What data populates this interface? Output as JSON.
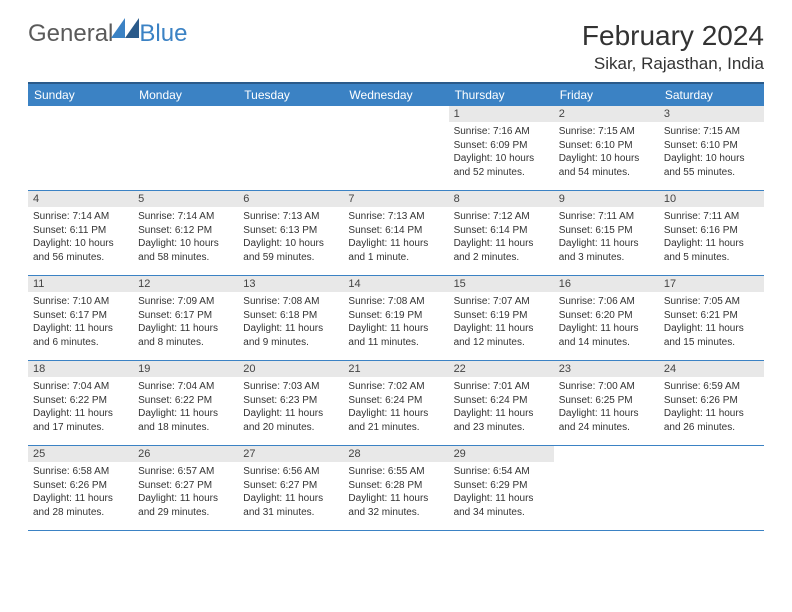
{
  "logo": {
    "text1": "General",
    "text2": "Blue"
  },
  "title": "February 2024",
  "location": "Sikar, Rajasthan, India",
  "colors": {
    "header_bg": "#3b82c4",
    "header_border": "#2a5a8a",
    "week_border": "#3b82c4",
    "daynum_bg": "#e8e8e8",
    "text": "#333333"
  },
  "day_headers": [
    "Sunday",
    "Monday",
    "Tuesday",
    "Wednesday",
    "Thursday",
    "Friday",
    "Saturday"
  ],
  "weeks": [
    [
      {
        "n": "",
        "sr": "",
        "ss": "",
        "dl": ""
      },
      {
        "n": "",
        "sr": "",
        "ss": "",
        "dl": ""
      },
      {
        "n": "",
        "sr": "",
        "ss": "",
        "dl": ""
      },
      {
        "n": "",
        "sr": "",
        "ss": "",
        "dl": ""
      },
      {
        "n": "1",
        "sr": "Sunrise: 7:16 AM",
        "ss": "Sunset: 6:09 PM",
        "dl": "Daylight: 10 hours and 52 minutes."
      },
      {
        "n": "2",
        "sr": "Sunrise: 7:15 AM",
        "ss": "Sunset: 6:10 PM",
        "dl": "Daylight: 10 hours and 54 minutes."
      },
      {
        "n": "3",
        "sr": "Sunrise: 7:15 AM",
        "ss": "Sunset: 6:10 PM",
        "dl": "Daylight: 10 hours and 55 minutes."
      }
    ],
    [
      {
        "n": "4",
        "sr": "Sunrise: 7:14 AM",
        "ss": "Sunset: 6:11 PM",
        "dl": "Daylight: 10 hours and 56 minutes."
      },
      {
        "n": "5",
        "sr": "Sunrise: 7:14 AM",
        "ss": "Sunset: 6:12 PM",
        "dl": "Daylight: 10 hours and 58 minutes."
      },
      {
        "n": "6",
        "sr": "Sunrise: 7:13 AM",
        "ss": "Sunset: 6:13 PM",
        "dl": "Daylight: 10 hours and 59 minutes."
      },
      {
        "n": "7",
        "sr": "Sunrise: 7:13 AM",
        "ss": "Sunset: 6:14 PM",
        "dl": "Daylight: 11 hours and 1 minute."
      },
      {
        "n": "8",
        "sr": "Sunrise: 7:12 AM",
        "ss": "Sunset: 6:14 PM",
        "dl": "Daylight: 11 hours and 2 minutes."
      },
      {
        "n": "9",
        "sr": "Sunrise: 7:11 AM",
        "ss": "Sunset: 6:15 PM",
        "dl": "Daylight: 11 hours and 3 minutes."
      },
      {
        "n": "10",
        "sr": "Sunrise: 7:11 AM",
        "ss": "Sunset: 6:16 PM",
        "dl": "Daylight: 11 hours and 5 minutes."
      }
    ],
    [
      {
        "n": "11",
        "sr": "Sunrise: 7:10 AM",
        "ss": "Sunset: 6:17 PM",
        "dl": "Daylight: 11 hours and 6 minutes."
      },
      {
        "n": "12",
        "sr": "Sunrise: 7:09 AM",
        "ss": "Sunset: 6:17 PM",
        "dl": "Daylight: 11 hours and 8 minutes."
      },
      {
        "n": "13",
        "sr": "Sunrise: 7:08 AM",
        "ss": "Sunset: 6:18 PM",
        "dl": "Daylight: 11 hours and 9 minutes."
      },
      {
        "n": "14",
        "sr": "Sunrise: 7:08 AM",
        "ss": "Sunset: 6:19 PM",
        "dl": "Daylight: 11 hours and 11 minutes."
      },
      {
        "n": "15",
        "sr": "Sunrise: 7:07 AM",
        "ss": "Sunset: 6:19 PM",
        "dl": "Daylight: 11 hours and 12 minutes."
      },
      {
        "n": "16",
        "sr": "Sunrise: 7:06 AM",
        "ss": "Sunset: 6:20 PM",
        "dl": "Daylight: 11 hours and 14 minutes."
      },
      {
        "n": "17",
        "sr": "Sunrise: 7:05 AM",
        "ss": "Sunset: 6:21 PM",
        "dl": "Daylight: 11 hours and 15 minutes."
      }
    ],
    [
      {
        "n": "18",
        "sr": "Sunrise: 7:04 AM",
        "ss": "Sunset: 6:22 PM",
        "dl": "Daylight: 11 hours and 17 minutes."
      },
      {
        "n": "19",
        "sr": "Sunrise: 7:04 AM",
        "ss": "Sunset: 6:22 PM",
        "dl": "Daylight: 11 hours and 18 minutes."
      },
      {
        "n": "20",
        "sr": "Sunrise: 7:03 AM",
        "ss": "Sunset: 6:23 PM",
        "dl": "Daylight: 11 hours and 20 minutes."
      },
      {
        "n": "21",
        "sr": "Sunrise: 7:02 AM",
        "ss": "Sunset: 6:24 PM",
        "dl": "Daylight: 11 hours and 21 minutes."
      },
      {
        "n": "22",
        "sr": "Sunrise: 7:01 AM",
        "ss": "Sunset: 6:24 PM",
        "dl": "Daylight: 11 hours and 23 minutes."
      },
      {
        "n": "23",
        "sr": "Sunrise: 7:00 AM",
        "ss": "Sunset: 6:25 PM",
        "dl": "Daylight: 11 hours and 24 minutes."
      },
      {
        "n": "24",
        "sr": "Sunrise: 6:59 AM",
        "ss": "Sunset: 6:26 PM",
        "dl": "Daylight: 11 hours and 26 minutes."
      }
    ],
    [
      {
        "n": "25",
        "sr": "Sunrise: 6:58 AM",
        "ss": "Sunset: 6:26 PM",
        "dl": "Daylight: 11 hours and 28 minutes."
      },
      {
        "n": "26",
        "sr": "Sunrise: 6:57 AM",
        "ss": "Sunset: 6:27 PM",
        "dl": "Daylight: 11 hours and 29 minutes."
      },
      {
        "n": "27",
        "sr": "Sunrise: 6:56 AM",
        "ss": "Sunset: 6:27 PM",
        "dl": "Daylight: 11 hours and 31 minutes."
      },
      {
        "n": "28",
        "sr": "Sunrise: 6:55 AM",
        "ss": "Sunset: 6:28 PM",
        "dl": "Daylight: 11 hours and 32 minutes."
      },
      {
        "n": "29",
        "sr": "Sunrise: 6:54 AM",
        "ss": "Sunset: 6:29 PM",
        "dl": "Daylight: 11 hours and 34 minutes."
      },
      {
        "n": "",
        "sr": "",
        "ss": "",
        "dl": ""
      },
      {
        "n": "",
        "sr": "",
        "ss": "",
        "dl": ""
      }
    ]
  ]
}
